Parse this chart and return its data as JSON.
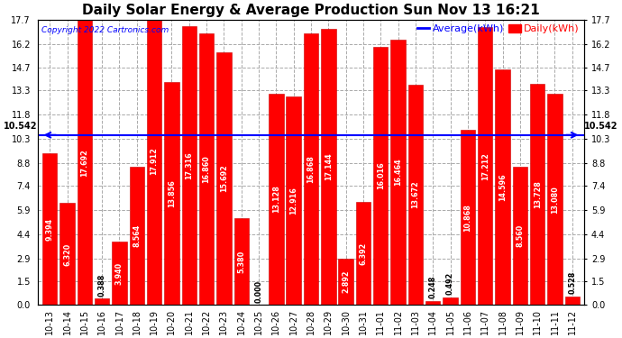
{
  "title": "Daily Solar Energy & Average Production Sun Nov 13 16:21",
  "copyright": "Copyright 2022 Cartronics.com",
  "legend_average": "Average(kWh)",
  "legend_daily": "Daily(kWh)",
  "average_value": 10.542,
  "categories": [
    "10-13",
    "10-14",
    "10-15",
    "10-16",
    "10-17",
    "10-18",
    "10-19",
    "10-20",
    "10-21",
    "10-22",
    "10-23",
    "10-24",
    "10-25",
    "10-26",
    "10-27",
    "10-28",
    "10-29",
    "10-30",
    "10-31",
    "11-01",
    "11-02",
    "11-03",
    "11-04",
    "11-05",
    "11-06",
    "11-07",
    "11-08",
    "11-09",
    "11-10",
    "11-11",
    "11-12"
  ],
  "values": [
    9.394,
    6.32,
    17.692,
    0.388,
    3.94,
    8.564,
    17.912,
    13.856,
    17.316,
    16.86,
    15.692,
    5.38,
    0.0,
    13.128,
    12.916,
    16.868,
    17.144,
    2.892,
    6.392,
    16.016,
    16.464,
    13.672,
    0.248,
    0.492,
    10.868,
    17.212,
    14.596,
    8.56,
    13.728,
    13.08,
    0.528
  ],
  "bar_color": "#ff0000",
  "bar_edge_color": "#cc0000",
  "average_line_color": "#0000ff",
  "ylim": [
    0,
    17.7
  ],
  "yticks": [
    0.0,
    1.5,
    2.9,
    4.4,
    5.9,
    7.4,
    8.8,
    10.3,
    11.8,
    13.3,
    14.7,
    16.2,
    17.7
  ],
  "bg_color": "#ffffff",
  "grid_color": "#aaaaaa",
  "title_fontsize": 11,
  "tick_fontsize": 7,
  "value_fontsize": 5.8,
  "arrow_label": "10.542",
  "xlabel_rotation": 90,
  "figwidth": 6.9,
  "figheight": 3.75,
  "dpi": 100
}
